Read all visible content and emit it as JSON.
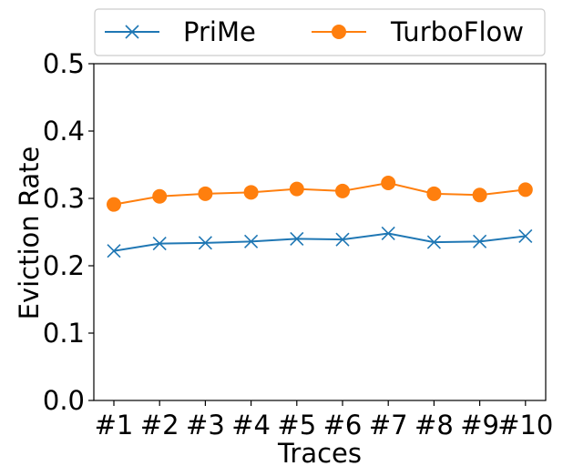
{
  "chart_data": {
    "type": "line",
    "title": "",
    "xlabel": "Traces",
    "ylabel": "Eviction Rate",
    "categories": [
      "#1",
      "#2",
      "#3",
      "#4",
      "#5",
      "#6",
      "#7",
      "#8",
      "#9",
      "#10"
    ],
    "ylim": [
      0.0,
      0.5
    ],
    "yticks": [
      "0.0",
      "0.1",
      "0.2",
      "0.3",
      "0.4",
      "0.5"
    ],
    "grid": false,
    "legend_position": "top",
    "series": [
      {
        "name": "PriMe",
        "marker": "x",
        "color": "#1f77b4",
        "values": [
          0.222,
          0.233,
          0.234,
          0.236,
          0.24,
          0.239,
          0.248,
          0.235,
          0.236,
          0.244
        ]
      },
      {
        "name": "TurboFlow",
        "marker": "circle",
        "color": "#ff7f0e",
        "values": [
          0.291,
          0.303,
          0.307,
          0.309,
          0.314,
          0.311,
          0.323,
          0.307,
          0.305,
          0.313
        ]
      }
    ]
  }
}
